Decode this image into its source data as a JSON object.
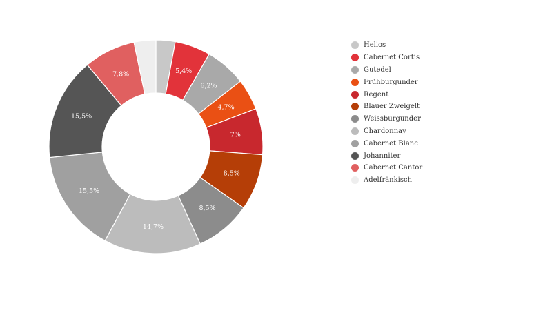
{
  "chart_data": {
    "type": "pie",
    "variant": "donut",
    "title": "",
    "legend_position": "right",
    "slices": [
      {
        "name": "Helios",
        "value": 2.9,
        "label": "",
        "color": "#c8c8c8"
      },
      {
        "name": "Cabernet Cortis",
        "value": 5.4,
        "label": "5,4%",
        "color": "#e2333a"
      },
      {
        "name": "Gutedel",
        "value": 6.2,
        "label": "6,2%",
        "color": "#a9a9a9"
      },
      {
        "name": "Frühburgunder",
        "value": 4.7,
        "label": "4,7%",
        "color": "#ea5014"
      },
      {
        "name": "Regent",
        "value": 7.0,
        "label": "7%",
        "color": "#c8282e"
      },
      {
        "name": "Blauer Zweigelt",
        "value": 8.5,
        "label": "8,5%",
        "color": "#b53e07"
      },
      {
        "name": "Weissburgunder",
        "value": 8.5,
        "label": "8,5%",
        "color": "#8c8c8c"
      },
      {
        "name": "Chardonnay",
        "value": 14.7,
        "label": "14,7%",
        "color": "#bcbcbc"
      },
      {
        "name": "Cabernet Blanc",
        "value": 15.5,
        "label": "15,5%",
        "color": "#a0a0a0"
      },
      {
        "name": "Johanniter",
        "value": 15.5,
        "label": "15,5%",
        "color": "#555555"
      },
      {
        "name": "Cabernet Cantor",
        "value": 7.8,
        "label": "7,8%",
        "color": "#e06060"
      },
      {
        "name": "Adelfränkisch",
        "value": 3.3,
        "label": "",
        "color": "#eeeeee"
      }
    ]
  }
}
